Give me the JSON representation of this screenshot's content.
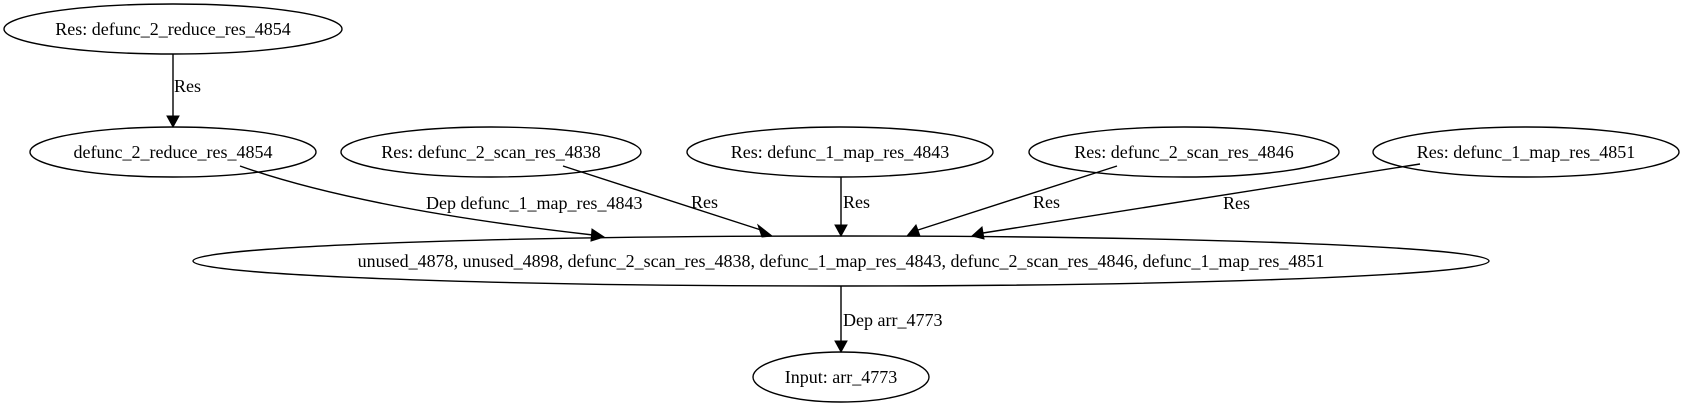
{
  "nodes": {
    "res_reduce": "Res: defunc_2_reduce_res_4854",
    "reduce": "defunc_2_reduce_res_4854",
    "res_scan_4838": "Res: defunc_2_scan_res_4838",
    "res_map_4843": "Res: defunc_1_map_res_4843",
    "res_scan_4846": "Res: defunc_2_scan_res_4846",
    "res_map_4851": "Res: defunc_1_map_res_4851",
    "combined": "unused_4878, unused_4898, defunc_2_scan_res_4838, defunc_1_map_res_4843, defunc_2_scan_res_4846, defunc_1_map_res_4851",
    "input": "Input: arr_4773"
  },
  "edges": {
    "res_reduce_to_reduce": "Res",
    "reduce_to_combined": "Dep defunc_1_map_res_4843",
    "scan_4838_to_combined": "Res",
    "map_4843_to_combined": "Res",
    "scan_4846_to_combined": "Res",
    "map_4851_to_combined": "Res",
    "combined_to_input": "Dep arr_4773"
  }
}
